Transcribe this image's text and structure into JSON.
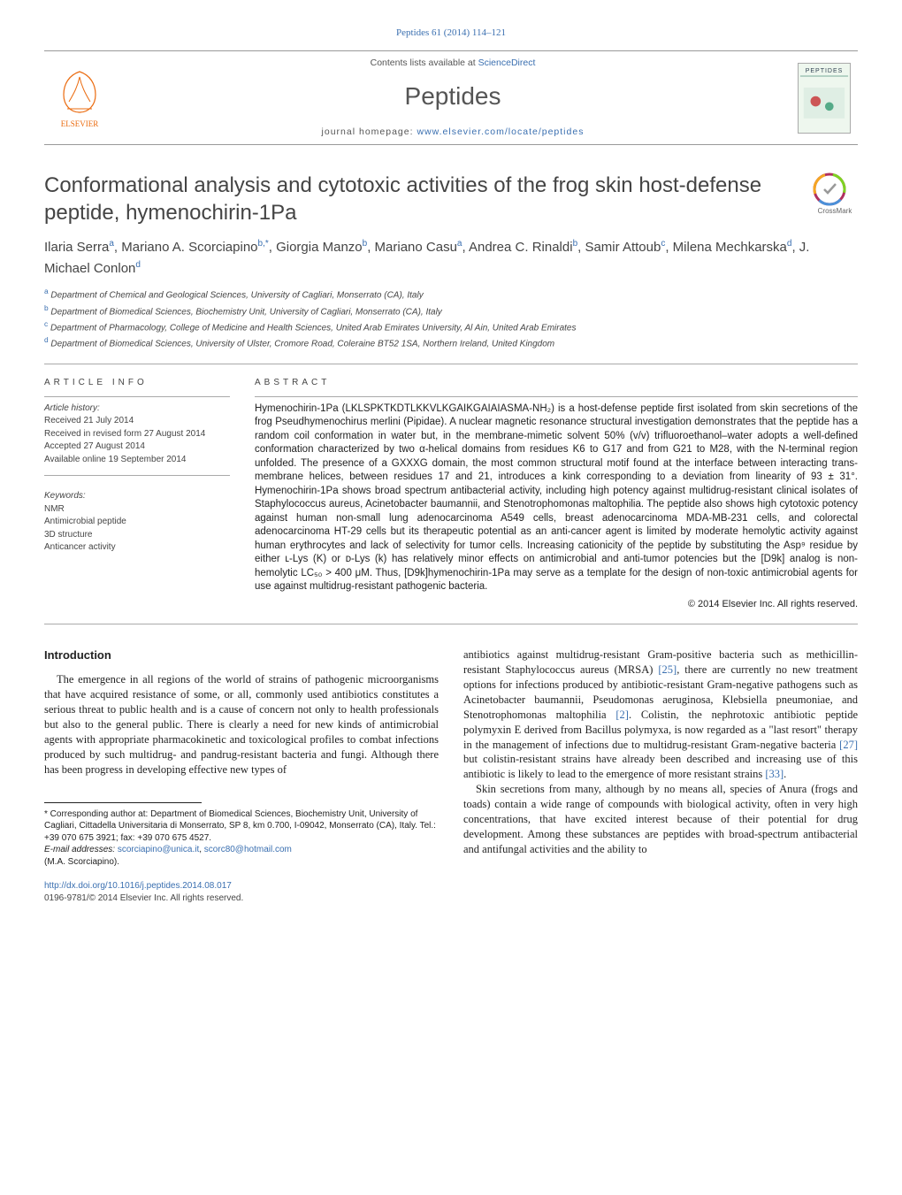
{
  "top_citation": "Peptides 61 (2014) 114–121",
  "header": {
    "contents_prefix": "Contents lists available at ",
    "sciencedirect": "ScienceDirect",
    "journal_name": "Peptides",
    "homepage_prefix": "journal homepage: ",
    "homepage_url": "www.elsevier.com/locate/peptides",
    "cover_label": "PEPTIDES"
  },
  "title": "Conformational analysis and cytotoxic activities of the frog skin host-defense peptide, hymenochirin-1Pa",
  "crossmark_label": "CrossMark",
  "authors_html": "Ilaria Serra<sup>a</sup>, Mariano A. Scorciapino<sup>b,*</sup>, Giorgia Manzo<sup>b</sup>, Mariano Casu<sup>a</sup>, Andrea C. Rinaldi<sup>b</sup>, Samir Attoub<sup>c</sup>, Milena Mechkarska<sup>d</sup>, J. Michael Conlon<sup>d</sup>",
  "affiliations": [
    {
      "sup": "a",
      "text": "Department of Chemical and Geological Sciences, University of Cagliari, Monserrato (CA), Italy"
    },
    {
      "sup": "b",
      "text": "Department of Biomedical Sciences, Biochemistry Unit, University of Cagliari, Monserrato (CA), Italy"
    },
    {
      "sup": "c",
      "text": "Department of Pharmacology, College of Medicine and Health Sciences, United Arab Emirates University, Al Ain, United Arab Emirates"
    },
    {
      "sup": "d",
      "text": "Department of Biomedical Sciences, University of Ulster, Cromore Road, Coleraine BT52 1SA, Northern Ireland, United Kingdom"
    }
  ],
  "meta": {
    "article_info_label": "article info",
    "history_head": "Article history:",
    "history_lines": [
      "Received 21 July 2014",
      "Received in revised form 27 August 2014",
      "Accepted 27 August 2014",
      "Available online 19 September 2014"
    ],
    "keywords_head": "Keywords:",
    "keywords": [
      "NMR",
      "Antimicrobial peptide",
      "3D structure",
      "Anticancer activity"
    ],
    "abstract_label": "abstract"
  },
  "abstract": "Hymenochirin-1Pa (LKLSPKTKDTLKKVLKGAIKGAIAIASMA-NH₂) is a host-defense peptide first isolated from skin secretions of the frog Pseudhymenochirus merlini (Pipidae). A nuclear magnetic resonance structural investigation demonstrates that the peptide has a random coil conformation in water but, in the membrane-mimetic solvent 50% (v/v) trifluoroethanol–water adopts a well-defined conformation characterized by two α-helical domains from residues K6 to G17 and from G21 to M28, with the N-terminal region unfolded. The presence of a GXXXG domain, the most common structural motif found at the interface between interacting trans-membrane helices, between residues 17 and 21, introduces a kink corresponding to a deviation from linearity of 93 ± 31°. Hymenochirin-1Pa shows broad spectrum antibacterial activity, including high potency against multidrug-resistant clinical isolates of Staphylococcus aureus, Acinetobacter baumannii, and Stenotrophomonas maltophilia. The peptide also shows high cytotoxic potency against human non-small lung adenocarcinoma A549 cells, breast adenocarcinoma MDA-MB-231 cells, and colorectal adenocarcinoma HT-29 cells but its therapeutic potential as an anti-cancer agent is limited by moderate hemolytic activity against human erythrocytes and lack of selectivity for tumor cells. Increasing cationicity of the peptide by substituting the Asp⁹ residue by either ʟ-Lys (K) or ᴅ-Lys (k) has relatively minor effects on antimicrobial and anti-tumor potencies but the [D9k] analog is non-hemolytic LC₅₀ > 400 μM. Thus, [D9k]hymenochirin-1Pa may serve as a template for the design of non-toxic antimicrobial agents for use against multidrug-resistant pathogenic bacteria.",
  "copyright": "© 2014 Elsevier Inc. All rights reserved.",
  "intro_head": "Introduction",
  "body": {
    "col1_p1": "The emergence in all regions of the world of strains of pathogenic microorganisms that have acquired resistance of some, or all, commonly used antibiotics constitutes a serious threat to public health and is a cause of concern not only to health professionals but also to the general public. There is clearly a need for new kinds of antimicrobial agents with appropriate pharmacokinetic and toxicological profiles to combat infections produced by such multidrug- and pandrug-resistant bacteria and fungi. Although there has been progress in developing effective new types of",
    "col2_p1_a": "antibiotics against multidrug-resistant Gram-positive bacteria such as methicillin-resistant Staphylococcus aureus (MRSA) ",
    "col2_ref1": "[25]",
    "col2_p1_b": ", there are currently no new treatment options for infections produced by antibiotic-resistant Gram-negative pathogens such as Acinetobacter baumannii, Pseudomonas aeruginosa, Klebsiella pneumoniae, and Stenotrophomonas maltophilia ",
    "col2_ref2": "[2]",
    "col2_p1_c": ". Colistin, the nephrotoxic antibiotic peptide polymyxin E derived from Bacillus polymyxa, is now regarded as a \"last resort\" therapy in the management of infections due to multidrug-resistant Gram-negative bacteria ",
    "col2_ref3": "[27]",
    "col2_p1_d": " but colistin-resistant strains have already been described and increasing use of this antibiotic is likely to lead to the emergence of more resistant strains ",
    "col2_ref4": "[33]",
    "col2_p1_e": ".",
    "col2_p2": "Skin secretions from many, although by no means all, species of Anura (frogs and toads) contain a wide range of compounds with biological activity, often in very high concentrations, that have excited interest because of their potential for drug development. Among these substances are peptides with broad-spectrum antibacterial and antifungal activities and the ability to"
  },
  "footnote": {
    "corr_label": "* Corresponding author at: Department of Biomedical Sciences, Biochemistry Unit, University of Cagliari, Cittadella Universitaria di Monserrato, SP 8, km 0.700, I-09042, Monserrato (CA), Italy. Tel.: +39 070 675 3921; fax: +39 070 675 4527.",
    "email_label": "E-mail addresses: ",
    "email1": "scorciapino@unica.it",
    "email_sep": ", ",
    "email2": "scorc80@hotmail.com",
    "email_name": "(M.A. Scorciapino)."
  },
  "doi": "http://dx.doi.org/10.1016/j.peptides.2014.08.017",
  "issn": "0196-9781/© 2014 Elsevier Inc. All rights reserved.",
  "colors": {
    "link": "#3a6fb0",
    "text": "#222222",
    "muted": "#555555",
    "rule": "#999999",
    "elsevier_orange": "#eb6b0f"
  }
}
